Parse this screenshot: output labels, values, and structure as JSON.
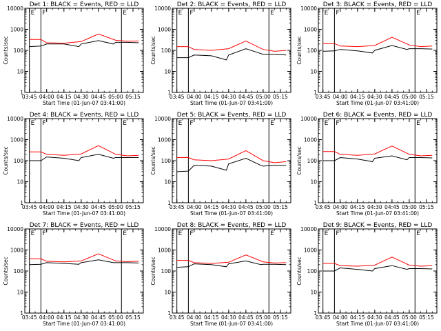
{
  "figure": {
    "ylabel": "Counts/sec",
    "xlabel": "Start Time (01-Jun-07 03:41:00)",
    "x_tick_labels": [
      "03:45",
      "04:00",
      "04:15",
      "04:30",
      "04:45",
      "05:00",
      "05:15"
    ],
    "y_tick_labels": [
      "1",
      "10",
      "100",
      "1000",
      "10000"
    ],
    "colors": {
      "events": "#000000",
      "lld": "#ff0000"
    }
  },
  "chart_data": [
    {
      "type": "line",
      "title": "Det 1: BLACK = Events, RED = LLD",
      "xlabel": "Start Time (01-Jun-07 03:41:00)",
      "ylabel": "Counts/sec",
      "x_range": [
        "03:41",
        "05:24"
      ],
      "y_scale": "log",
      "ylim": [
        1,
        10000
      ],
      "markers": [
        {
          "label": "E",
          "x": "03:45"
        },
        {
          "label": "F",
          "x": "03:55"
        },
        {
          "label": "E",
          "x": "05:05"
        }
      ],
      "series": [
        {
          "name": "Events",
          "color": "#000000",
          "x": [
            "03:45",
            "03:55",
            "04:00",
            "04:15",
            "04:28",
            "04:30",
            "04:45",
            "04:58",
            "05:00",
            "05:10",
            "05:20"
          ],
          "values": [
            150,
            160,
            200,
            200,
            150,
            200,
            290,
            200,
            240,
            240,
            230
          ]
        },
        {
          "name": "LLD",
          "color": "#ff0000",
          "x": [
            "03:45",
            "03:55",
            "04:00",
            "04:15",
            "04:30",
            "04:45",
            "05:00",
            "05:10",
            "05:20"
          ],
          "values": [
            330,
            330,
            230,
            220,
            260,
            600,
            300,
            270,
            280
          ]
        }
      ]
    },
    {
      "type": "line",
      "title": "Det 2: BLACK = Events, RED = LLD",
      "xlabel": "Start Time (01-Jun-07 03:41:00)",
      "ylabel": "Counts/sec",
      "x_range": [
        "03:41",
        "05:24"
      ],
      "y_scale": "log",
      "ylim": [
        1,
        10000
      ],
      "markers": [
        {
          "label": "E",
          "x": "03:45"
        },
        {
          "label": "F",
          "x": "03:55"
        },
        {
          "label": "E",
          "x": "05:05"
        }
      ],
      "series": [
        {
          "name": "Events",
          "color": "#000000",
          "x": [
            "03:45",
            "03:55",
            "04:00",
            "04:15",
            "04:28",
            "04:30",
            "04:45",
            "04:58",
            "05:00",
            "05:10",
            "05:20"
          ],
          "values": [
            45,
            45,
            60,
            55,
            35,
            60,
            120,
            70,
            65,
            65,
            60
          ]
        },
        {
          "name": "LLD",
          "color": "#ff0000",
          "x": [
            "03:45",
            "03:55",
            "04:00",
            "04:15",
            "04:30",
            "04:45",
            "05:00",
            "05:10",
            "05:20"
          ],
          "values": [
            150,
            150,
            110,
            100,
            120,
            280,
            110,
            90,
            100
          ]
        }
      ]
    },
    {
      "type": "line",
      "title": "Det 3: BLACK = Events, RED = LLD",
      "xlabel": "Start Time (01-Jun-07 03:41:00)",
      "ylabel": "Counts/sec",
      "x_range": [
        "03:41",
        "05:24"
      ],
      "y_scale": "log",
      "ylim": [
        1,
        10000
      ],
      "markers": [
        {
          "label": "E",
          "x": "03:45"
        },
        {
          "label": "F",
          "x": "03:55"
        },
        {
          "label": "E",
          "x": "05:05"
        }
      ],
      "series": [
        {
          "name": "Events",
          "color": "#000000",
          "x": [
            "03:45",
            "03:55",
            "04:00",
            "04:15",
            "04:28",
            "04:30",
            "04:45",
            "04:58",
            "05:00",
            "05:10",
            "05:20"
          ],
          "values": [
            90,
            95,
            110,
            95,
            75,
            100,
            170,
            110,
            120,
            120,
            115
          ]
        },
        {
          "name": "LLD",
          "color": "#ff0000",
          "x": [
            "03:45",
            "03:55",
            "04:00",
            "04:15",
            "04:30",
            "04:45",
            "05:00",
            "05:10",
            "05:20"
          ],
          "values": [
            210,
            210,
            160,
            150,
            170,
            420,
            180,
            150,
            160
          ]
        }
      ]
    },
    {
      "type": "line",
      "title": "Det 4: BLACK = Events, RED = LLD",
      "xlabel": "Start Time (01-Jun-07 03:41:00)",
      "ylabel": "Counts/sec",
      "x_range": [
        "03:41",
        "05:24"
      ],
      "y_scale": "log",
      "ylim": [
        1,
        10000
      ],
      "markers": [
        {
          "label": "E",
          "x": "03:45"
        },
        {
          "label": "F",
          "x": "03:55"
        },
        {
          "label": "E",
          "x": "05:05"
        }
      ],
      "series": [
        {
          "name": "Events",
          "color": "#000000",
          "x": [
            "03:45",
            "03:55",
            "04:00",
            "04:15",
            "04:28",
            "04:30",
            "04:45",
            "04:58",
            "05:00",
            "05:10",
            "05:20"
          ],
          "values": [
            100,
            100,
            150,
            130,
            100,
            140,
            200,
            130,
            140,
            140,
            140
          ]
        },
        {
          "name": "LLD",
          "color": "#ff0000",
          "x": [
            "03:45",
            "03:55",
            "04:00",
            "04:15",
            "04:30",
            "04:45",
            "05:00",
            "05:10",
            "05:20"
          ],
          "values": [
            260,
            260,
            200,
            180,
            210,
            520,
            200,
            170,
            180
          ]
        }
      ]
    },
    {
      "type": "line",
      "title": "Det 5: BLACK = Events, RED = LLD",
      "xlabel": "Start Time (01-Jun-07 03:41:00)",
      "ylabel": "Counts/sec",
      "x_range": [
        "03:41",
        "05:24"
      ],
      "y_scale": "log",
      "ylim": [
        1,
        10000
      ],
      "markers": [
        {
          "label": "E",
          "x": "03:45"
        },
        {
          "label": "F",
          "x": "03:55"
        },
        {
          "label": "E",
          "x": "05:05"
        }
      ],
      "series": [
        {
          "name": "Events",
          "color": "#000000",
          "x": [
            "03:45",
            "03:55",
            "04:00",
            "04:15",
            "04:28",
            "04:30",
            "04:45",
            "04:58",
            "05:00",
            "05:10",
            "05:20"
          ],
          "values": [
            30,
            32,
            60,
            55,
            35,
            70,
            130,
            60,
            55,
            60,
            60
          ]
        },
        {
          "name": "LLD",
          "color": "#ff0000",
          "x": [
            "03:45",
            "03:55",
            "04:00",
            "04:15",
            "04:30",
            "04:45",
            "05:00",
            "05:10",
            "05:20"
          ],
          "values": [
            140,
            140,
            110,
            100,
            120,
            300,
            100,
            80,
            90
          ]
        }
      ]
    },
    {
      "type": "line",
      "title": "Det 6: BLACK = Events, RED = LLD",
      "xlabel": "Start Time (01-Jun-07 03:41:00)",
      "ylabel": "Counts/sec",
      "x_range": [
        "03:41",
        "05:24"
      ],
      "y_scale": "log",
      "ylim": [
        1,
        10000
      ],
      "markers": [
        {
          "label": "E",
          "x": "03:45"
        },
        {
          "label": "F",
          "x": "03:55"
        },
        {
          "label": "E",
          "x": "05:05"
        }
      ],
      "series": [
        {
          "name": "Events",
          "color": "#000000",
          "x": [
            "03:45",
            "03:55",
            "04:00",
            "04:15",
            "04:28",
            "04:30",
            "04:45",
            "04:58",
            "05:00",
            "05:10",
            "05:20"
          ],
          "values": [
            100,
            100,
            140,
            120,
            90,
            130,
            170,
            110,
            140,
            140,
            135
          ]
        },
        {
          "name": "LLD",
          "color": "#ff0000",
          "x": [
            "03:45",
            "03:55",
            "04:00",
            "04:15",
            "04:30",
            "04:45",
            "05:00",
            "05:10",
            "05:20"
          ],
          "values": [
            270,
            270,
            200,
            180,
            210,
            500,
            200,
            170,
            180
          ]
        }
      ]
    },
    {
      "type": "line",
      "title": "Det 7: BLACK = Events, RED = LLD",
      "xlabel": "Start Time (01-Jun-07 03:41:00)",
      "ylabel": "Counts/sec",
      "x_range": [
        "03:41",
        "05:24"
      ],
      "y_scale": "log",
      "ylim": [
        1,
        10000
      ],
      "markers": [
        {
          "label": "E",
          "x": "03:45"
        },
        {
          "label": "F",
          "x": "03:55"
        },
        {
          "label": "E",
          "x": "05:05"
        }
      ],
      "series": [
        {
          "name": "Events",
          "color": "#000000",
          "x": [
            "03:45",
            "03:55",
            "04:00",
            "04:15",
            "04:28",
            "04:30",
            "04:45",
            "04:58",
            "05:00",
            "05:10",
            "05:20"
          ],
          "values": [
            200,
            210,
            250,
            230,
            210,
            250,
            340,
            250,
            250,
            250,
            240
          ]
        },
        {
          "name": "LLD",
          "color": "#ff0000",
          "x": [
            "03:45",
            "03:55",
            "04:00",
            "04:15",
            "04:30",
            "04:45",
            "05:00",
            "05:10",
            "05:20"
          ],
          "values": [
            380,
            380,
            290,
            270,
            300,
            660,
            300,
            280,
            290
          ]
        }
      ]
    },
    {
      "type": "line",
      "title": "Det 8: BLACK = Events, RED = LLD",
      "xlabel": "Start Time (01-Jun-07 03:41:00)",
      "ylabel": "Counts/sec",
      "x_range": [
        "03:41",
        "05:24"
      ],
      "y_scale": "log",
      "ylim": [
        1,
        10000
      ],
      "markers": [
        {
          "label": "E",
          "x": "03:45"
        },
        {
          "label": "F",
          "x": "03:55"
        },
        {
          "label": "E",
          "x": "05:05"
        }
      ],
      "series": [
        {
          "name": "Events",
          "color": "#000000",
          "x": [
            "03:45",
            "03:55",
            "04:00",
            "04:15",
            "04:28",
            "04:30",
            "04:45",
            "04:58",
            "05:00",
            "05:10",
            "05:20"
          ],
          "values": [
            150,
            160,
            220,
            200,
            160,
            220,
            300,
            200,
            210,
            210,
            200
          ]
        },
        {
          "name": "LLD",
          "color": "#ff0000",
          "x": [
            "03:45",
            "03:55",
            "04:00",
            "04:15",
            "04:30",
            "04:45",
            "05:00",
            "05:10",
            "05:20"
          ],
          "values": [
            320,
            320,
            250,
            230,
            260,
            580,
            270,
            240,
            250
          ]
        }
      ]
    },
    {
      "type": "line",
      "title": "Det 9: BLACK = Events, RED = LLD",
      "xlabel": "Start Time (01-Jun-07 03:41:00)",
      "ylabel": "Counts/sec",
      "x_range": [
        "03:41",
        "05:24"
      ],
      "y_scale": "log",
      "ylim": [
        1,
        10000
      ],
      "markers": [
        {
          "label": "E",
          "x": "03:45"
        },
        {
          "label": "F",
          "x": "03:55"
        },
        {
          "label": "E",
          "x": "05:05"
        }
      ],
      "series": [
        {
          "name": "Events",
          "color": "#000000",
          "x": [
            "03:45",
            "03:55",
            "04:00",
            "04:15",
            "04:28",
            "04:30",
            "04:45",
            "04:58",
            "05:00",
            "05:10",
            "05:20"
          ],
          "values": [
            100,
            100,
            140,
            120,
            100,
            130,
            180,
            120,
            130,
            130,
            125
          ]
        },
        {
          "name": "LLD",
          "color": "#ff0000",
          "x": [
            "03:45",
            "03:55",
            "04:00",
            "04:15",
            "04:30",
            "04:45",
            "05:00",
            "05:10",
            "05:20"
          ],
          "values": [
            230,
            230,
            180,
            170,
            190,
            460,
            190,
            170,
            180
          ]
        }
      ]
    }
  ]
}
